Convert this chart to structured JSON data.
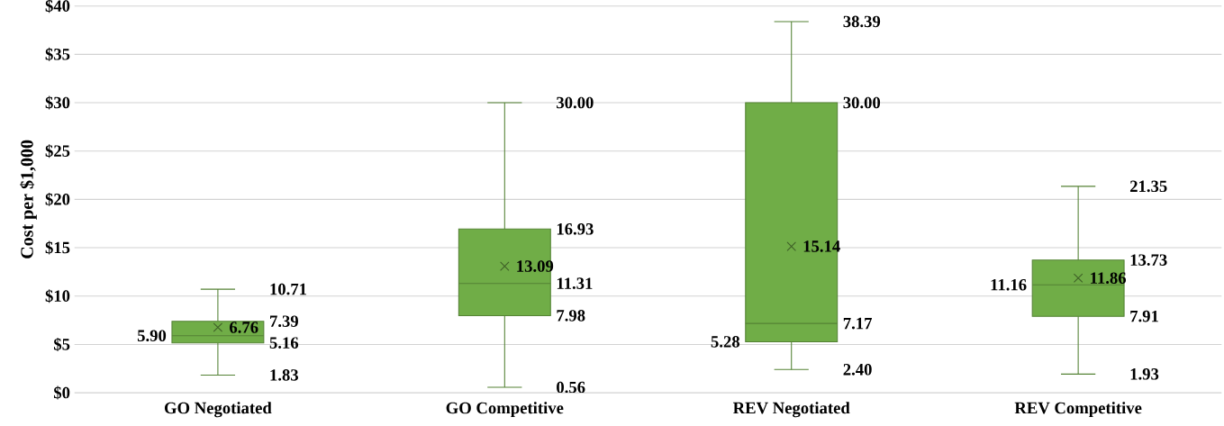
{
  "chart_data": {
    "type": "box",
    "ylabel": "Cost per $1,000",
    "categories": [
      "GO Negotiated",
      "GO Competitive",
      "REV Negotiated",
      "REV Competitive"
    ],
    "boxes": [
      {
        "low": 1.83,
        "q1": 5.16,
        "median": 5.9,
        "q3": 7.39,
        "high": 10.71,
        "mean": 6.76
      },
      {
        "low": 0.56,
        "q1": 7.98,
        "median": 11.31,
        "q3": 16.93,
        "high": 30.0,
        "mean": 13.09
      },
      {
        "low": 2.4,
        "q1": 5.28,
        "median": 7.17,
        "q3": 30.0,
        "high": 38.39,
        "mean": 15.14
      },
      {
        "low": 1.93,
        "q1": 7.91,
        "median": 11.16,
        "q3": 13.73,
        "high": 21.35,
        "mean": 11.86
      }
    ],
    "color": "#70ad47",
    "ylim": [
      0,
      40
    ],
    "yticks": [
      {
        "value": 0,
        "label": "$0"
      },
      {
        "value": 5,
        "label": "$5"
      },
      {
        "value": 10,
        "label": "$10"
      },
      {
        "value": 15,
        "label": "$15"
      },
      {
        "value": 20,
        "label": "$20"
      },
      {
        "value": 25,
        "label": "$25"
      },
      {
        "value": 30,
        "label": "$30"
      },
      {
        "value": 35,
        "label": "$35"
      },
      {
        "value": 40,
        "label": "$40"
      }
    ],
    "annotations": [
      "10.71",
      "7.39",
      "6.76",
      "5.90",
      "5.16",
      "1.83",
      "30.00",
      "16.93",
      "13.09",
      "11.31",
      "7.98",
      "0.56",
      "38.39",
      "30.00",
      "15.14",
      "7.17",
      "5.28",
      "2.40",
      "21.35",
      "13.73",
      "11.86",
      "11.16",
      "7.91",
      "1.93"
    ],
    "grid": "y",
    "marker": "cross"
  }
}
